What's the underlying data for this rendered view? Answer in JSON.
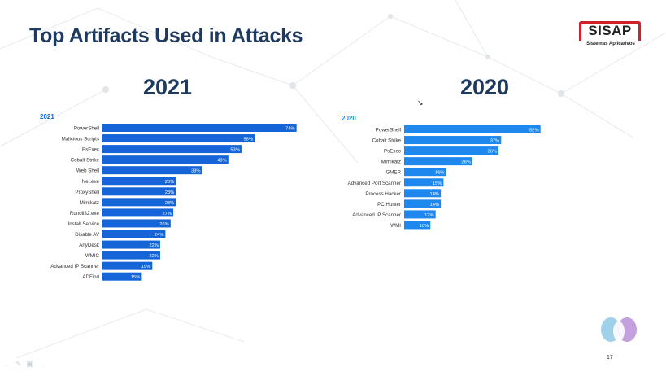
{
  "title": "Top Artifacts Used in Attacks",
  "year_left": "2021",
  "year_right": "2020",
  "logo": {
    "name": "SISAP",
    "tagline": "Sistemas Aplicativos"
  },
  "page_number": "17",
  "colors": {
    "bar_2021": "#1565d8",
    "bar_2020": "#1e88ef",
    "title": "#1f3a5f",
    "logo_red": "#d0202a"
  },
  "chart_data": [
    {
      "type": "bar",
      "orientation": "horizontal",
      "title": "2021",
      "categories": [
        "PowerShell",
        "Malicious Scripts",
        "PsExec",
        "Cobalt Strike",
        "Web Shell",
        "Net.exe",
        "ProxyShell",
        "Mimikatz",
        "Rundll32.exe",
        "Install Service",
        "Disable AV",
        "AnyDesk",
        "WMIC",
        "Advanced IP Scanner",
        "ADFind"
      ],
      "values": [
        74,
        58,
        53,
        48,
        38,
        28,
        28,
        28,
        27,
        26,
        24,
        22,
        22,
        19,
        15
      ],
      "value_suffix": "%",
      "xlim": [
        0,
        80
      ],
      "grid": false
    },
    {
      "type": "bar",
      "orientation": "horizontal",
      "title": "2020",
      "categories": [
        "PowerShell",
        "Cobalt Strike",
        "PsExec",
        "Mimikatz",
        "GMER",
        "Advanced Port Scanner",
        "Process Hacker",
        "PC Hunter",
        "Advanced IP Scanner",
        "WMI"
      ],
      "values": [
        52,
        37,
        36,
        26,
        16,
        15,
        14,
        14,
        12,
        10
      ],
      "value_suffix": "%",
      "xlim": [
        0,
        80
      ],
      "grid": false
    }
  ]
}
